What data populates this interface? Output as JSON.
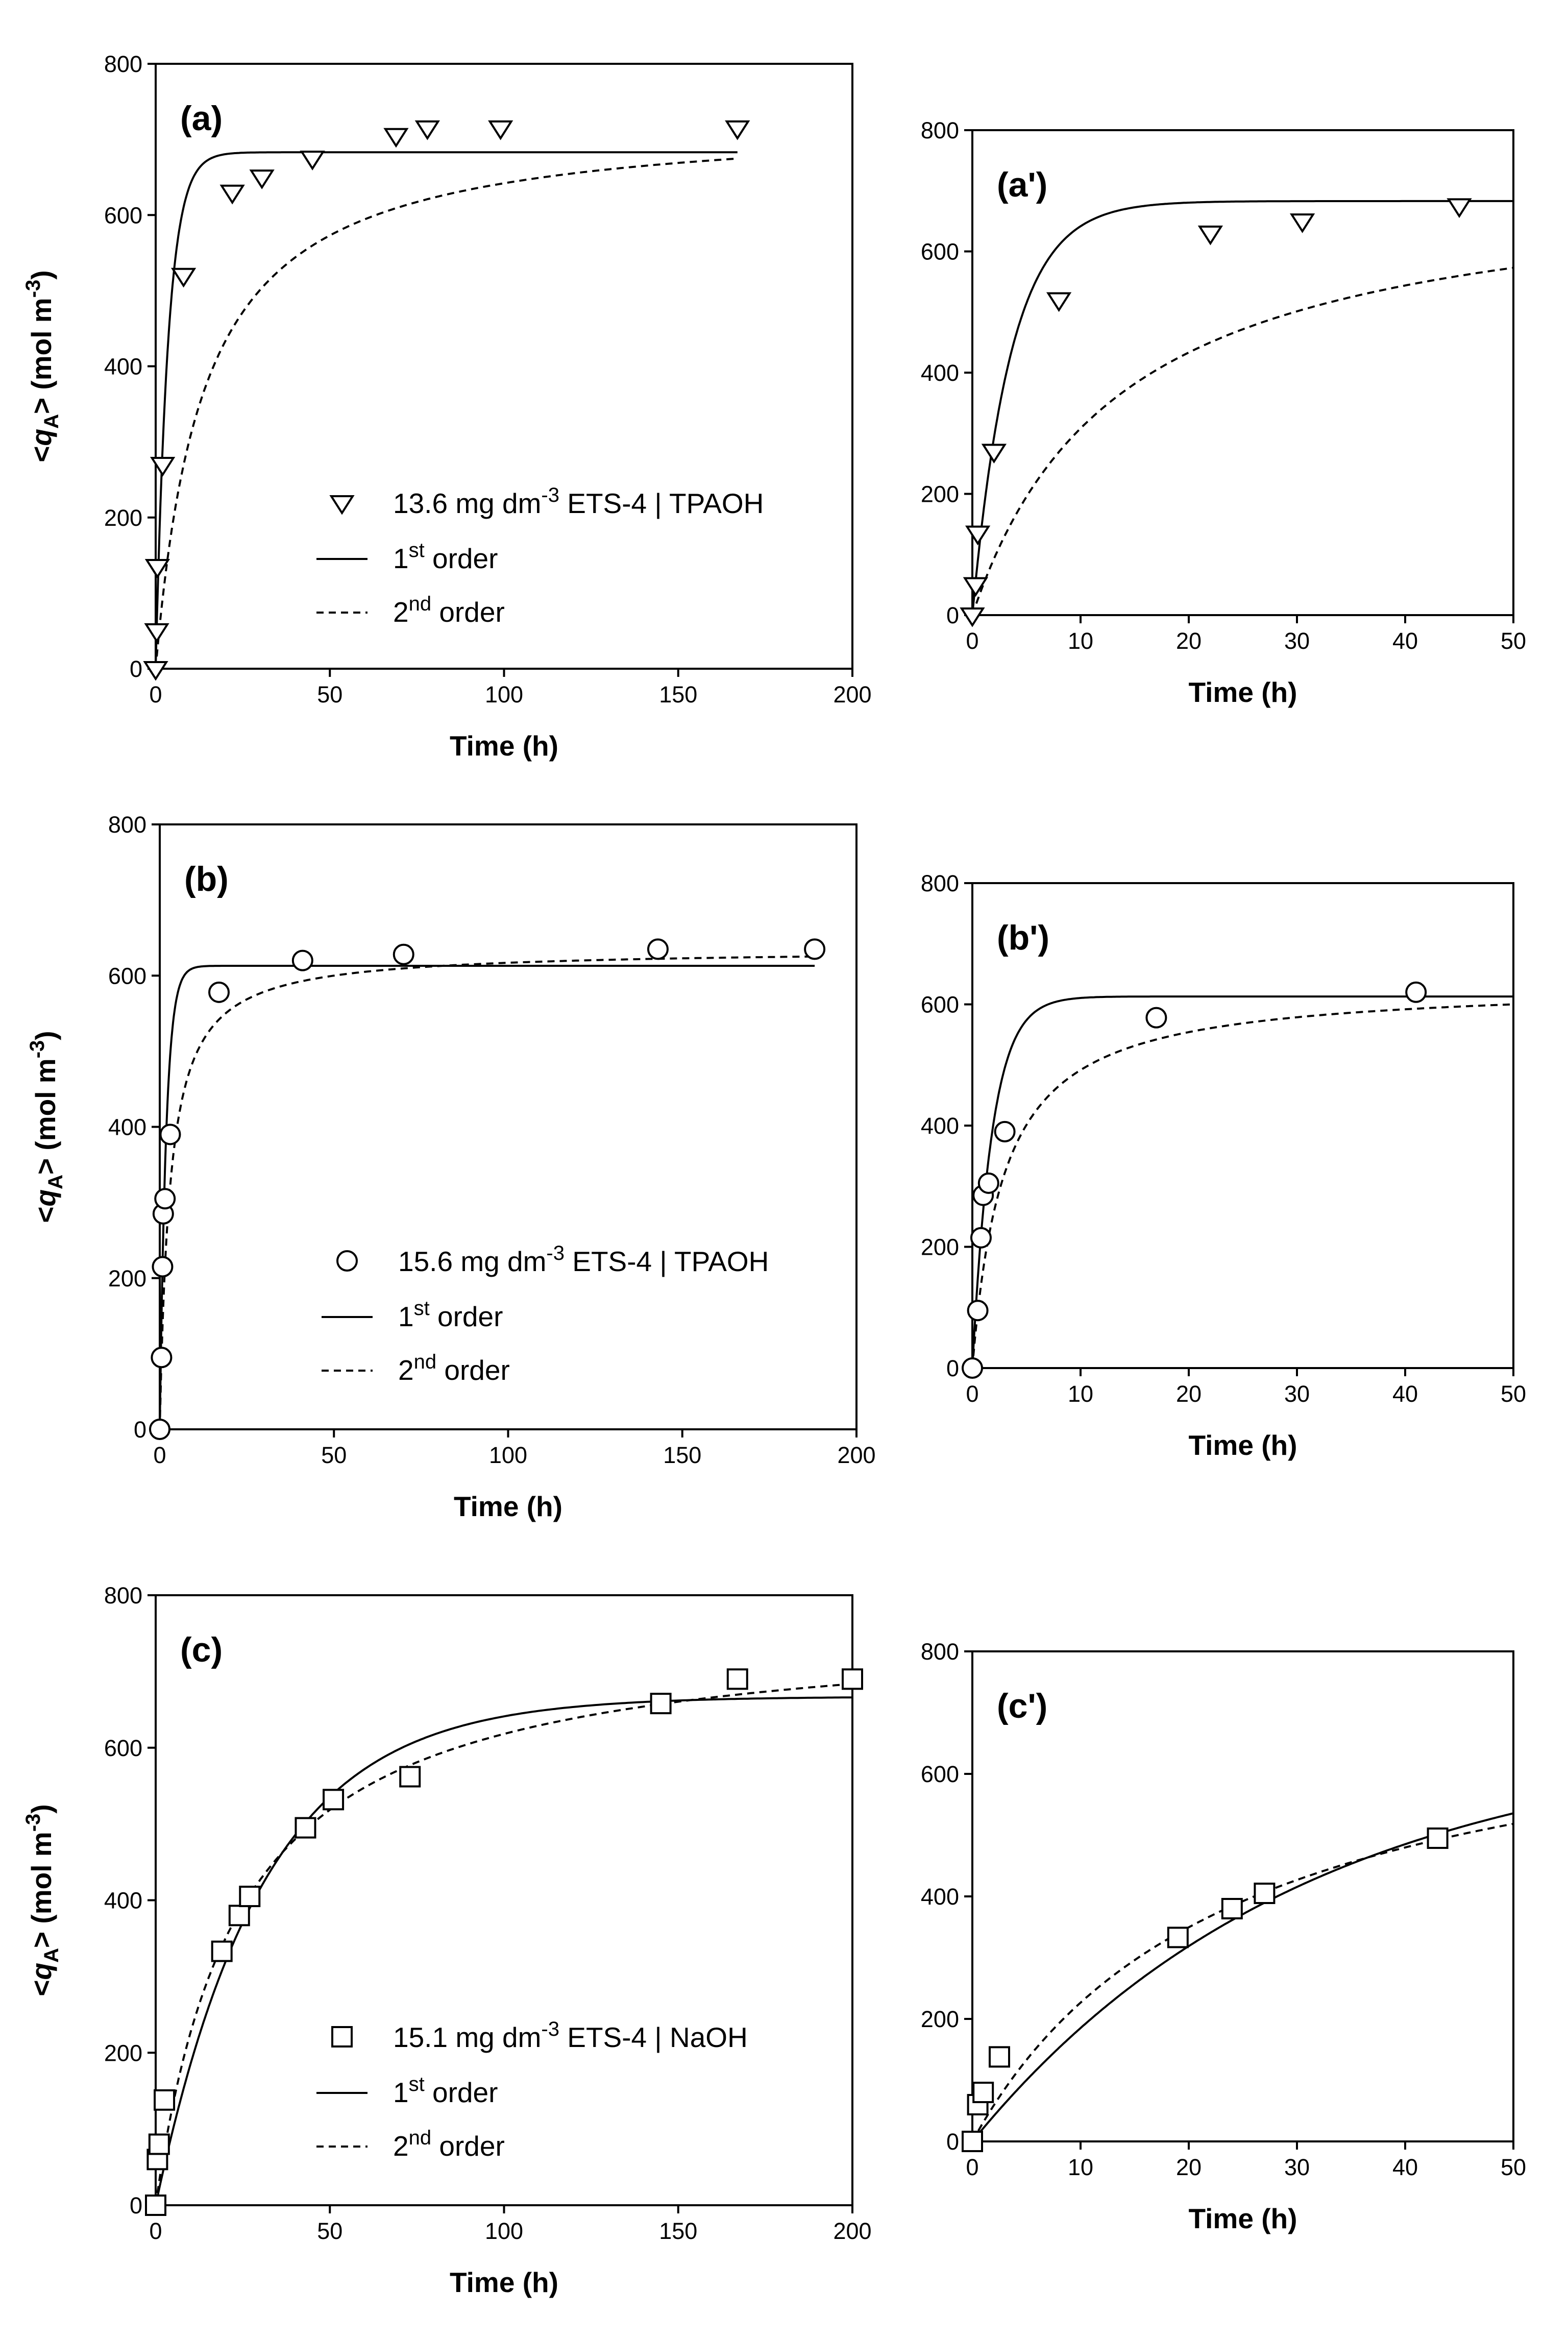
{
  "chart_data": [
    {
      "id": "a",
      "type": "scatter",
      "panel_label": "(a)",
      "title": "",
      "xlabel": "Time (h)",
      "ylabel": "<qA> (mol m-3)",
      "xlim": [
        0,
        200
      ],
      "ylim": [
        0,
        800
      ],
      "xticks": [
        0,
        50,
        100,
        150,
        200
      ],
      "yticks": [
        0,
        200,
        400,
        600,
        800
      ],
      "marker": "triangle-down",
      "data_label": "13.6 mg dm-3 ETS-4 | TPAOH",
      "first_order_label": "1st order",
      "second_order_label": "2nd order",
      "x": [
        0,
        0.3,
        0.5,
        2,
        8,
        22,
        30.5,
        45,
        69,
        78,
        99,
        167
      ],
      "y": [
        0,
        50,
        135,
        270,
        520,
        630,
        650,
        675,
        705,
        715,
        715,
        715
      ],
      "first_order": {
        "qe": 683,
        "k": 0.28,
        "tmax": 167
      },
      "second_order": {
        "qe": 730,
        "k": 0.0001,
        "tmax": 167
      }
    },
    {
      "id": "a_prime",
      "type": "scatter",
      "panel_label": "(a')",
      "title": "",
      "xlabel": "Time (h)",
      "ylabel": "",
      "xlim": [
        0,
        50
      ],
      "ylim": [
        0,
        800
      ],
      "xticks": [
        0,
        10,
        20,
        30,
        40,
        50
      ],
      "yticks": [
        0,
        200,
        400,
        600,
        800
      ],
      "marker": "triangle-down",
      "x": [
        0,
        0.3,
        0.5,
        2,
        8,
        22,
        30.5,
        45
      ],
      "y": [
        0,
        50,
        135,
        270,
        520,
        630,
        650,
        675
      ],
      "first_order": {
        "qe": 683,
        "k": 0.28,
        "tmax": 50
      },
      "second_order": {
        "qe": 730,
        "k": 0.0001,
        "tmax": 50
      }
    },
    {
      "id": "b",
      "type": "scatter",
      "panel_label": "(b)",
      "title": "",
      "xlabel": "Time (h)",
      "ylabel": "<qA> (mol m-3)",
      "xlim": [
        0,
        200
      ],
      "ylim": [
        0,
        800
      ],
      "xticks": [
        0,
        50,
        100,
        150,
        200
      ],
      "yticks": [
        0,
        200,
        400,
        600,
        800
      ],
      "marker": "circle",
      "data_label": "15.6 mg dm-3 ETS-4 | TPAOH",
      "first_order_label": "1st order",
      "second_order_label": "2nd order",
      "x": [
        0,
        0.5,
        0.8,
        1.0,
        1.5,
        3,
        17,
        41,
        70,
        143,
        188
      ],
      "y": [
        0,
        95,
        215,
        285,
        305,
        390,
        578,
        620,
        628,
        635,
        635
      ],
      "first_order": {
        "qe": 613,
        "k": 0.55,
        "tmax": 188
      },
      "second_order": {
        "qe": 635,
        "k": 0.00054,
        "tmax": 188
      }
    },
    {
      "id": "b_prime",
      "type": "scatter",
      "panel_label": "(b')",
      "title": "",
      "xlabel": "Time (h)",
      "ylabel": "",
      "xlim": [
        0,
        50
      ],
      "ylim": [
        0,
        800
      ],
      "xticks": [
        0,
        10,
        20,
        30,
        40,
        50
      ],
      "yticks": [
        0,
        200,
        400,
        600,
        800
      ],
      "marker": "circle",
      "x": [
        0,
        0.5,
        0.8,
        1.0,
        1.5,
        3,
        17,
        41
      ],
      "y": [
        0,
        95,
        215,
        285,
        305,
        390,
        578,
        620
      ],
      "first_order": {
        "qe": 613,
        "k": 0.55,
        "tmax": 50
      },
      "second_order": {
        "qe": 635,
        "k": 0.00054,
        "tmax": 50
      }
    },
    {
      "id": "c",
      "type": "scatter",
      "panel_label": "(c)",
      "title": "",
      "xlabel": "Time (h)",
      "ylabel": "<qA> (mol m-3)",
      "xlim": [
        0,
        200
      ],
      "ylim": [
        0,
        800
      ],
      "xticks": [
        0,
        50,
        100,
        150,
        200
      ],
      "yticks": [
        0,
        200,
        400,
        600,
        800
      ],
      "marker": "square",
      "data_label": "15.1 mg dm-3 ETS-4 | NaOH",
      "first_order_label": "1st order",
      "second_order_label": "2nd order",
      "x": [
        0,
        0.5,
        1.0,
        2.5,
        19,
        24,
        27,
        43,
        51,
        73,
        145,
        167,
        200
      ],
      "y": [
        0,
        60,
        80,
        138,
        333,
        380,
        405,
        495,
        532,
        562,
        658,
        690,
        690
      ],
      "first_order": {
        "qe": 667,
        "k": 0.0325,
        "tmax": 200
      },
      "second_order": {
        "qe": 765,
        "k": 5.5e-05,
        "tmax": 200
      }
    },
    {
      "id": "c_prime",
      "type": "scatter",
      "panel_label": "(c')",
      "title": "",
      "xlabel": "Time (h)",
      "ylabel": "",
      "xlim": [
        0,
        50
      ],
      "ylim": [
        0,
        800
      ],
      "xticks": [
        0,
        10,
        20,
        30,
        40,
        50
      ],
      "yticks": [
        0,
        200,
        400,
        600,
        800
      ],
      "marker": "square",
      "x": [
        0,
        0.5,
        1.0,
        2.5,
        19,
        24,
        27,
        43
      ],
      "y": [
        0,
        60,
        80,
        138,
        333,
        380,
        405,
        495
      ],
      "first_order": {
        "qe": 667,
        "k": 0.0325,
        "tmax": 50
      },
      "second_order": {
        "qe": 765,
        "k": 5.5e-05,
        "tmax": 50
      }
    }
  ]
}
